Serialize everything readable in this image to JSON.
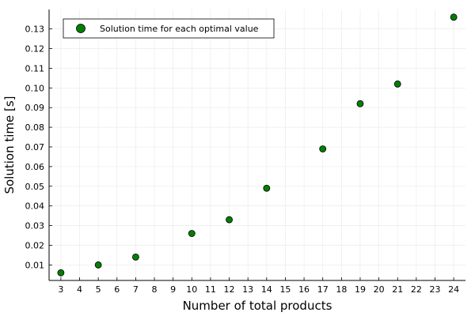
{
  "chart_data": {
    "type": "scatter",
    "xlabel": "Number of total products",
    "ylabel": "Solution time [s]",
    "xlim": [
      2.37,
      24.63
    ],
    "ylim": [
      0.0021,
      0.1399
    ],
    "xticks": [
      "3",
      "4",
      "5",
      "6",
      "7",
      "8",
      "9",
      "10",
      "11",
      "12",
      "13",
      "14",
      "15",
      "16",
      "17",
      "18",
      "19",
      "20",
      "21",
      "22",
      "23",
      "24"
    ],
    "yticks": [
      "0.01",
      "0.02",
      "0.03",
      "0.04",
      "0.05",
      "0.06",
      "0.07",
      "0.08",
      "0.09",
      "0.10",
      "0.11",
      "0.12",
      "0.13"
    ],
    "grid": true,
    "legend_position": "top-left",
    "series": [
      {
        "name": "Solution time for each optimal value",
        "color": "#008000",
        "x": [
          3,
          5,
          7,
          10,
          12,
          14,
          17,
          19,
          21,
          24
        ],
        "y": [
          0.006,
          0.01,
          0.014,
          0.026,
          0.033,
          0.049,
          0.069,
          0.092,
          0.102,
          0.136
        ]
      }
    ]
  }
}
